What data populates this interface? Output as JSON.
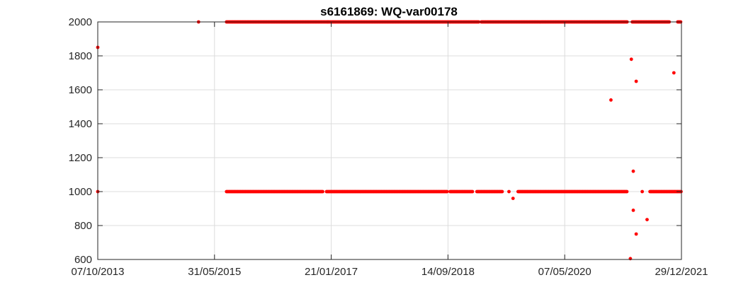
{
  "chart_data": {
    "type": "scatter",
    "title": "s6161869: WQ-var00178",
    "xlabel": "",
    "ylabel": "",
    "x_range": [
      "2013-10-07",
      "2021-12-29"
    ],
    "ylim": [
      600,
      2000
    ],
    "x_ticks": [
      "07/10/2013",
      "31/05/2015",
      "21/01/2017",
      "14/09/2018",
      "07/05/2020",
      "29/12/2021"
    ],
    "y_ticks": [
      "600",
      "800",
      "1000",
      "1200",
      "1400",
      "1600",
      "1800",
      "2000"
    ],
    "grid": true,
    "marker_color": "#ff0000",
    "series": [
      {
        "points": [
          {
            "x": "2013-10-07",
            "y": 1850
          },
          {
            "x": "2013-10-07",
            "y": 1000
          },
          {
            "x": "2015-03-10",
            "y": 2000
          },
          {
            "x": "2020-12-31",
            "y": 1540
          },
          {
            "x": "2021-04-15",
            "y": 1780
          },
          {
            "x": "2021-04-25",
            "y": 1120
          },
          {
            "x": "2021-04-25",
            "y": 890
          },
          {
            "x": "2021-04-10",
            "y": 605
          },
          {
            "x": "2021-05-10",
            "y": 1650
          },
          {
            "x": "2021-05-10",
            "y": 750
          },
          {
            "x": "2021-06-10",
            "y": 1000
          },
          {
            "x": "2021-07-05",
            "y": 835
          },
          {
            "x": "2021-11-20",
            "y": 1700
          },
          {
            "x": "2019-07-25",
            "y": 1000
          },
          {
            "x": "2019-08-15",
            "y": 960
          }
        ],
        "runs": [
          {
            "start": "2015-08-01",
            "end": "2017-01-05",
            "y": 2000,
            "step_days": 5
          },
          {
            "start": "2017-01-05",
            "end": "2019-02-20",
            "y": 2000,
            "step_days": 5
          },
          {
            "start": "2019-03-05",
            "end": "2021-03-25",
            "y": 2000,
            "step_days": 5
          },
          {
            "start": "2021-04-20",
            "end": "2021-10-30",
            "y": 2000,
            "step_days": 5
          },
          {
            "start": "2021-12-10",
            "end": "2021-12-29",
            "y": 2000,
            "step_days": 5
          },
          {
            "start": "2015-08-01",
            "end": "2016-12-10",
            "y": 1000,
            "step_days": 5
          },
          {
            "start": "2016-12-28",
            "end": "2018-09-10",
            "y": 1000,
            "step_days": 5
          },
          {
            "start": "2018-09-25",
            "end": "2019-01-20",
            "y": 1000,
            "step_days": 5
          },
          {
            "start": "2019-02-10",
            "end": "2019-06-20",
            "y": 1000,
            "step_days": 5
          },
          {
            "start": "2019-09-10",
            "end": "2021-03-25",
            "y": 1000,
            "step_days": 5
          },
          {
            "start": "2021-07-20",
            "end": "2021-12-29",
            "y": 1000,
            "step_days": 5
          }
        ]
      }
    ]
  }
}
